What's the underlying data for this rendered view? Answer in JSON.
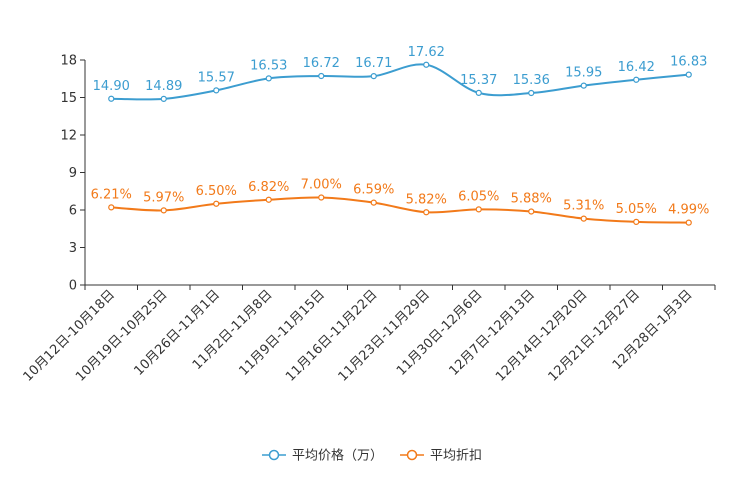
{
  "chart_data": {
    "type": "line",
    "title": "",
    "xlabel": "",
    "ylabel": "",
    "ylim": [
      0,
      18
    ],
    "yticks": [
      0,
      3,
      6,
      9,
      12,
      15,
      18
    ],
    "grid": false,
    "legend_position": "bottom-center",
    "categories": [
      "10月12日-10月18日",
      "10月19日-10月25日",
      "10月26日-11月1日",
      "11月2日-11月8日",
      "11月9日-11月15日",
      "11月16日-11月22日",
      "11月23日-11月29日",
      "11月30日-12月6日",
      "12月7日-12月13日",
      "12月14日-12月20日",
      "12月21日-12月27日",
      "12月28日-1月3日"
    ],
    "series": [
      {
        "name": "平均价格（万）",
        "color": "#3c9dd0",
        "values": [
          14.9,
          14.89,
          15.57,
          16.53,
          16.72,
          16.71,
          17.62,
          15.37,
          15.36,
          15.95,
          16.42,
          16.83
        ],
        "labels": [
          "14.90",
          "14.89",
          "15.57",
          "16.53",
          "16.72",
          "16.71",
          "17.62",
          "15.37",
          "15.36",
          "15.95",
          "16.42",
          "16.83"
        ]
      },
      {
        "name": "平均折扣",
        "color": "#f27a1a",
        "values": [
          6.21,
          5.97,
          6.5,
          6.82,
          7.0,
          6.59,
          5.82,
          6.05,
          5.88,
          5.31,
          5.05,
          4.99
        ],
        "labels": [
          "6.21%",
          "5.97%",
          "6.50%",
          "6.82%",
          "7.00%",
          "6.59%",
          "5.82%",
          "6.05%",
          "5.88%",
          "5.31%",
          "5.05%",
          "4.99%"
        ]
      }
    ]
  }
}
